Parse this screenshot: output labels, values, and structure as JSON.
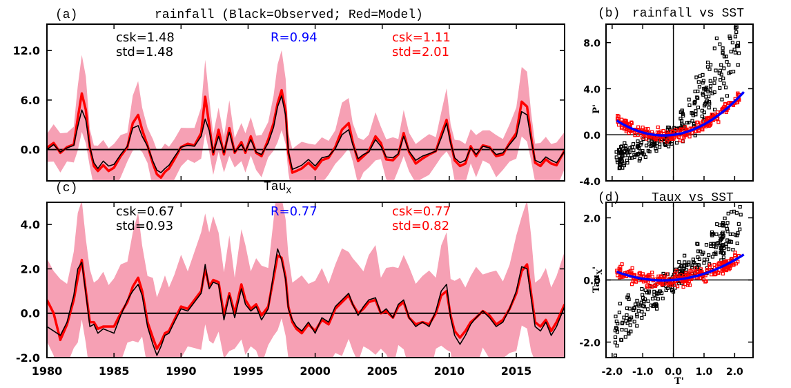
{
  "chart_data": [
    {
      "panel": "a",
      "type": "line",
      "title": "rainfall (Black=Observed; Red=Model)",
      "label": "(a)",
      "xlim": [
        1980,
        2018.6
      ],
      "ylim": [
        -3.8,
        15.2
      ],
      "yticks": [
        "12.0",
        "6.0",
        "0.0"
      ],
      "ytick_values": [
        12,
        6,
        0
      ],
      "stats": {
        "obs_csk": "csk=1.48",
        "obs_std": "std=1.48",
        "r": "R=0.94",
        "model_csk": "csk=1.11",
        "model_std": "std=2.01"
      },
      "series": [
        {
          "name": "Observed",
          "color": "#000000",
          "x": [
            1980,
            1980.5,
            1981,
            1981.5,
            1982,
            1982.3,
            1982.6,
            1982.9,
            1983.2,
            1983.5,
            1983.8,
            1984.2,
            1984.6,
            1985,
            1985.5,
            1986,
            1986.4,
            1986.8,
            1987.1,
            1987.5,
            1987.9,
            1988.2,
            1988.5,
            1988.8,
            1989.1,
            1989.5,
            1990,
            1990.5,
            1991,
            1991.5,
            1991.8,
            1992.1,
            1992.4,
            1992.8,
            1993.2,
            1993.6,
            1994,
            1994.5,
            1994.8,
            1995.2,
            1995.6,
            1996,
            1996.5,
            1996.9,
            1997.2,
            1997.5,
            1997.8,
            1998,
            1998.3,
            1998.6,
            1999,
            1999.5,
            2000,
            2000.5,
            2001,
            2001.5,
            2002,
            2002.5,
            2002.8,
            2003.2,
            2003.6,
            2004,
            2004.5,
            2004.9,
            2005.3,
            2005.8,
            2006.2,
            2006.6,
            2007,
            2007.5,
            2008,
            2008.5,
            2009,
            2009.4,
            2009.8,
            2010.1,
            2010.4,
            2010.8,
            2011.2,
            2011.6,
            2012,
            2012.5,
            2013,
            2013.5,
            2014,
            2014.5,
            2015,
            2015.4,
            2015.8,
            2016.1,
            2016.4,
            2016.8,
            2017.2,
            2017.6,
            2018,
            2018.6
          ],
          "y": [
            0.0,
            0.6,
            -0.3,
            0.2,
            0.5,
            2.8,
            4.8,
            3.6,
            0.3,
            -1.6,
            -2.3,
            -1.4,
            -2.0,
            -1.8,
            -0.6,
            0.4,
            2.6,
            2.9,
            1.6,
            0.4,
            -1.4,
            -2.5,
            -2.8,
            -2.3,
            -1.9,
            -0.9,
            0.3,
            0.5,
            0.4,
            1.6,
            3.7,
            2.3,
            -0.4,
            1.6,
            -0.4,
            2.1,
            -0.3,
            0.6,
            -0.2,
            1.2,
            -0.3,
            -0.6,
            0.8,
            2.7,
            5.2,
            6.5,
            4.1,
            -0.2,
            -2.4,
            -2.2,
            -1.9,
            -1.2,
            -2.0,
            -1.0,
            -0.8,
            0.1,
            1.8,
            2.4,
            0.6,
            -1.1,
            -0.6,
            -0.3,
            1.2,
            0.4,
            -0.9,
            -1.0,
            -0.5,
            1.6,
            -0.2,
            -1.3,
            -0.8,
            -0.5,
            -0.2,
            1.4,
            3.2,
            0.8,
            -1.0,
            -1.6,
            -1.3,
            0.2,
            -0.6,
            0.4,
            0.2,
            -0.6,
            -0.4,
            0.6,
            1.6,
            4.6,
            4.2,
            1.2,
            -1.3,
            -1.6,
            -0.9,
            -1.3,
            -1.6,
            -0.2
          ]
        },
        {
          "name": "Model",
          "color": "#ff0000",
          "x": [
            1980,
            1980.5,
            1981,
            1981.5,
            1982,
            1982.3,
            1982.6,
            1982.9,
            1983.2,
            1983.5,
            1983.8,
            1984.2,
            1984.6,
            1985,
            1985.5,
            1986,
            1986.4,
            1986.8,
            1987.1,
            1987.5,
            1987.9,
            1988.2,
            1988.5,
            1988.8,
            1989.1,
            1989.5,
            1990,
            1990.5,
            1991,
            1991.5,
            1991.8,
            1992.1,
            1992.4,
            1992.8,
            1993.2,
            1993.6,
            1994,
            1994.5,
            1994.8,
            1995.2,
            1995.6,
            1996,
            1996.5,
            1996.9,
            1997.2,
            1997.5,
            1997.8,
            1998,
            1998.3,
            1998.6,
            1999,
            1999.5,
            2000,
            2000.5,
            2001,
            2001.5,
            2002,
            2002.5,
            2002.8,
            2003.2,
            2003.6,
            2004,
            2004.5,
            2004.9,
            2005.3,
            2005.8,
            2006.2,
            2006.6,
            2007,
            2007.5,
            2008,
            2008.5,
            2009,
            2009.4,
            2009.8,
            2010.1,
            2010.4,
            2010.8,
            2011.2,
            2011.6,
            2012,
            2012.5,
            2013,
            2013.5,
            2014,
            2014.5,
            2015,
            2015.4,
            2015.8,
            2016.1,
            2016.4,
            2016.8,
            2017.2,
            2017.6,
            2018,
            2018.6
          ],
          "y": [
            0.2,
            0.8,
            -0.4,
            0.3,
            0.6,
            3.8,
            6.8,
            4.8,
            0.2,
            -2.0,
            -2.6,
            -1.9,
            -2.6,
            -2.2,
            -0.8,
            0.3,
            3.2,
            4.2,
            2.4,
            0.5,
            -1.7,
            -3.0,
            -3.4,
            -2.7,
            -2.3,
            -1.2,
            0.3,
            0.7,
            0.5,
            2.0,
            6.4,
            3.0,
            -0.6,
            2.4,
            -0.6,
            2.6,
            -0.4,
            0.9,
            -0.4,
            1.6,
            -0.4,
            -0.8,
            1.2,
            3.2,
            5.6,
            7.2,
            4.6,
            -0.4,
            -2.8,
            -2.6,
            -2.3,
            -1.6,
            -2.4,
            -1.3,
            -1.0,
            0.3,
            2.4,
            3.2,
            0.9,
            -1.4,
            -0.8,
            -0.2,
            1.6,
            0.8,
            -1.2,
            -1.3,
            -0.6,
            2.0,
            -0.3,
            -1.7,
            -1.1,
            -0.6,
            -0.2,
            1.8,
            3.6,
            1.0,
            -1.3,
            -2.0,
            -1.7,
            0.4,
            -0.8,
            0.5,
            0.3,
            -0.8,
            -0.6,
            0.8,
            2.0,
            5.8,
            5.2,
            1.6,
            -1.6,
            -2.0,
            -1.2,
            -1.7,
            -1.9,
            -0.1
          ]
        }
      ]
    },
    {
      "panel": "c",
      "type": "line",
      "title": "Tau",
      "title_sub": "X",
      "label": "(c)",
      "xlim": [
        1980,
        2018.6
      ],
      "xticks": [
        "1980",
        "1985",
        "1990",
        "1995",
        "2000",
        "2005",
        "2010",
        "2015"
      ],
      "xtick_values": [
        1980,
        1985,
        1990,
        1995,
        2000,
        2005,
        2010,
        2015
      ],
      "ylim": [
        -2.0,
        5.0
      ],
      "yticks": [
        "4.0",
        "2.0",
        "0.0",
        "-2.0"
      ],
      "ytick_values": [
        4,
        2,
        0,
        -2
      ],
      "stats": {
        "obs_csk": "csk=0.67",
        "obs_std": "std=0.93",
        "r": "R=0.77",
        "model_csk": "csk=0.77",
        "model_std": "std=0.82"
      },
      "series": [
        {
          "name": "Observed",
          "color": "#000000",
          "x": [
            1980,
            1980.5,
            1981,
            1981.5,
            1982,
            1982.3,
            1982.6,
            1982.9,
            1983.2,
            1983.5,
            1983.8,
            1984.2,
            1984.6,
            1985,
            1985.5,
            1986,
            1986.4,
            1986.8,
            1987.1,
            1987.5,
            1987.9,
            1988.2,
            1988.5,
            1988.8,
            1989.1,
            1989.5,
            1990,
            1990.5,
            1991,
            1991.5,
            1991.8,
            1992.1,
            1992.4,
            1992.8,
            1993.2,
            1993.6,
            1994,
            1994.5,
            1994.8,
            1995.2,
            1995.6,
            1996,
            1996.5,
            1996.9,
            1997.2,
            1997.5,
            1997.8,
            1998,
            1998.3,
            1998.6,
            1999,
            1999.5,
            2000,
            2000.5,
            2001,
            2001.5,
            2002,
            2002.5,
            2002.8,
            2003.2,
            2003.6,
            2004,
            2004.5,
            2004.9,
            2005.3,
            2005.8,
            2006.2,
            2006.6,
            2007,
            2007.5,
            2008,
            2008.5,
            2009,
            2009.4,
            2009.8,
            2010.1,
            2010.4,
            2010.8,
            2011.2,
            2011.6,
            2012,
            2012.5,
            2013,
            2013.5,
            2014,
            2014.5,
            2015,
            2015.4,
            2015.8,
            2016.1,
            2016.4,
            2016.8,
            2017.2,
            2017.6,
            2018,
            2018.6
          ],
          "y": [
            -0.6,
            -0.8,
            -1.0,
            -0.4,
            0.8,
            2.0,
            2.3,
            0.9,
            -0.6,
            -0.5,
            -0.9,
            -0.7,
            -0.8,
            -0.9,
            -0.1,
            0.6,
            1.0,
            1.3,
            0.8,
            -0.6,
            -1.4,
            -1.9,
            -1.5,
            -1.0,
            -0.9,
            -0.4,
            0.2,
            0.1,
            0.5,
            0.9,
            2.2,
            1.1,
            1.4,
            1.3,
            -0.3,
            0.8,
            -0.2,
            1.1,
            0.4,
            0.1,
            0.3,
            -0.3,
            0.2,
            1.8,
            2.9,
            2.4,
            1.5,
            0.2,
            -0.3,
            -0.6,
            -0.8,
            -0.4,
            -0.9,
            -0.2,
            -0.4,
            0.3,
            0.6,
            0.9,
            0.4,
            -0.1,
            0.3,
            0.6,
            0.7,
            0.0,
            0.2,
            -0.2,
            0.4,
            0.6,
            -0.2,
            -0.6,
            -0.4,
            -0.6,
            0.1,
            1.0,
            1.3,
            -0.2,
            -1.0,
            -1.4,
            -1.0,
            -0.5,
            -0.2,
            0.1,
            -0.2,
            -0.6,
            -0.4,
            0.2,
            1.0,
            2.1,
            2.0,
            0.7,
            -0.6,
            -0.8,
            -0.4,
            -1.0,
            -0.6,
            0.3
          ]
        },
        {
          "name": "Model",
          "color": "#ff0000",
          "x": [
            1980,
            1980.5,
            1981,
            1981.5,
            1982,
            1982.3,
            1982.6,
            1982.9,
            1983.2,
            1983.5,
            1983.8,
            1984.2,
            1984.6,
            1985,
            1985.5,
            1986,
            1986.4,
            1986.8,
            1987.1,
            1987.5,
            1987.9,
            1988.2,
            1988.5,
            1988.8,
            1989.1,
            1989.5,
            1990,
            1990.5,
            1991,
            1991.5,
            1991.8,
            1992.1,
            1992.4,
            1992.8,
            1993.2,
            1993.6,
            1994,
            1994.5,
            1994.8,
            1995.2,
            1995.6,
            1996,
            1996.5,
            1996.9,
            1997.2,
            1997.5,
            1997.8,
            1998,
            1998.3,
            1998.6,
            1999,
            1999.5,
            2000,
            2000.5,
            2001,
            2001.5,
            2002,
            2002.5,
            2002.8,
            2003.2,
            2003.6,
            2004,
            2004.5,
            2004.9,
            2005.3,
            2005.8,
            2006.2,
            2006.6,
            2007,
            2007.5,
            2008,
            2008.5,
            2009,
            2009.4,
            2009.8,
            2010.1,
            2010.4,
            2010.8,
            2011.2,
            2011.6,
            2012,
            2012.5,
            2013,
            2013.5,
            2014,
            2014.5,
            2015,
            2015.4,
            2015.8,
            2016.1,
            2016.4,
            2016.8,
            2017.2,
            2017.6,
            2018,
            2018.6
          ],
          "y": [
            0.6,
            0.0,
            -1.2,
            -0.5,
            0.6,
            1.6,
            2.4,
            1.0,
            -0.4,
            -0.4,
            -0.7,
            -0.6,
            -0.6,
            -0.6,
            0.0,
            0.5,
            1.2,
            1.6,
            1.0,
            -0.4,
            -1.1,
            -1.6,
            -1.3,
            -0.9,
            -0.8,
            -0.3,
            0.3,
            0.2,
            0.6,
            1.0,
            2.0,
            1.2,
            1.5,
            1.4,
            -0.1,
            0.9,
            0.0,
            1.3,
            0.6,
            0.2,
            0.4,
            -0.1,
            0.3,
            1.6,
            2.6,
            2.5,
            1.6,
            0.3,
            -0.4,
            -0.7,
            -0.9,
            -0.5,
            -0.8,
            -0.3,
            -0.5,
            0.2,
            0.5,
            0.8,
            0.4,
            0.0,
            0.2,
            0.5,
            0.6,
            0.0,
            0.1,
            -0.2,
            0.3,
            0.5,
            -0.2,
            -0.5,
            -0.4,
            -0.5,
            0.0,
            0.8,
            1.0,
            -0.1,
            -0.8,
            -1.1,
            -0.8,
            -0.4,
            -0.2,
            0.1,
            -0.1,
            -0.5,
            -0.3,
            0.2,
            0.9,
            1.9,
            2.2,
            0.9,
            -0.4,
            -0.6,
            -0.3,
            -0.8,
            -0.4,
            0.4
          ]
        }
      ]
    },
    {
      "panel": "b",
      "type": "scatter",
      "title": "rainfall vs SST",
      "label": "(b)",
      "xlabel": "",
      "ylabel": "P'",
      "xlim": [
        -2.2,
        2.6
      ],
      "ylim": [
        -4.0,
        9.6
      ],
      "yticks": [
        "8.0",
        "4.0",
        "0.0",
        "-4.0"
      ],
      "ytick_values": [
        8,
        4,
        0,
        -4
      ],
      "fit_coeffs": [
        0.0,
        0.35,
        0.55
      ],
      "fit_color": "#0000ff"
    },
    {
      "panel": "d",
      "type": "scatter",
      "title": "Taux vs SST",
      "label": "(d)",
      "xlabel": "T'",
      "ylabel": "Tau",
      "ylabel_sub": "X",
      "ylabel_suffix": "'",
      "xlim": [
        -2.2,
        2.6
      ],
      "xticks": [
        "-2.0",
        "-1.0",
        "0.0",
        "1.0",
        "2.0"
      ],
      "xtick_values": [
        -2,
        -1,
        0,
        1,
        2
      ],
      "ylim": [
        -2.5,
        2.5
      ],
      "yticks": [
        "2.0",
        "0.0",
        "-2.0"
      ],
      "ytick_values": [
        2,
        0,
        -2
      ],
      "fit_coeffs": [
        0.0,
        0.08,
        0.12
      ],
      "fit_color": "#0000ff"
    }
  ]
}
